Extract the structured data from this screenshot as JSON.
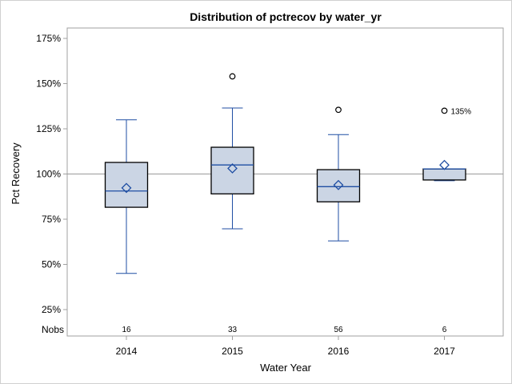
{
  "chart_data": {
    "type": "box",
    "title": "Distribution of pctrecov by water_yr",
    "xlabel": "Water Year",
    "ylabel": "Pct Recovery",
    "categories": [
      "2014",
      "2015",
      "2016",
      "2017"
    ],
    "ylim": [
      15,
      180
    ],
    "yticks": [
      25,
      50,
      75,
      100,
      125,
      150,
      175
    ],
    "ytick_labels": [
      "25%",
      "50%",
      "75%",
      "100%",
      "125%",
      "150%",
      "175%"
    ],
    "reference_line": 100,
    "nobs_label": "Nobs",
    "boxes": [
      {
        "category": "2014",
        "whisker_low": 45,
        "q1": 81.6,
        "median": 90.6,
        "mean": 92.3,
        "q3": 106.4,
        "whisker_high": 130,
        "outliers": [],
        "nobs": "16"
      },
      {
        "category": "2015",
        "whisker_low": 69.7,
        "q1": 89,
        "median": 105,
        "mean": 103.1,
        "q3": 114.8,
        "whisker_high": 136.5,
        "outliers": [
          154
        ],
        "nobs": "33"
      },
      {
        "category": "2016",
        "whisker_low": 63,
        "q1": 84.6,
        "median": 93,
        "mean": 93.9,
        "q3": 102.4,
        "whisker_high": 121.8,
        "outliers": [
          135.5
        ],
        "nobs": "56"
      },
      {
        "category": "2017",
        "whisker_low": 96.3,
        "q1": 96.7,
        "median": 102.8,
        "mean": 105,
        "q3": 102.8,
        "whisker_high": 102.8,
        "outliers": [
          135
        ],
        "nobs": "6",
        "outlier_label": "135%"
      }
    ],
    "colors": {
      "box_fill": "#cbd5e4",
      "box_edge": "#000000",
      "whisker": "#1f4ea3",
      "mean_marker": "#1f4ea3",
      "reference_line": "#9a9a9a",
      "frame": "#a0a0a0"
    },
    "grid": false
  }
}
